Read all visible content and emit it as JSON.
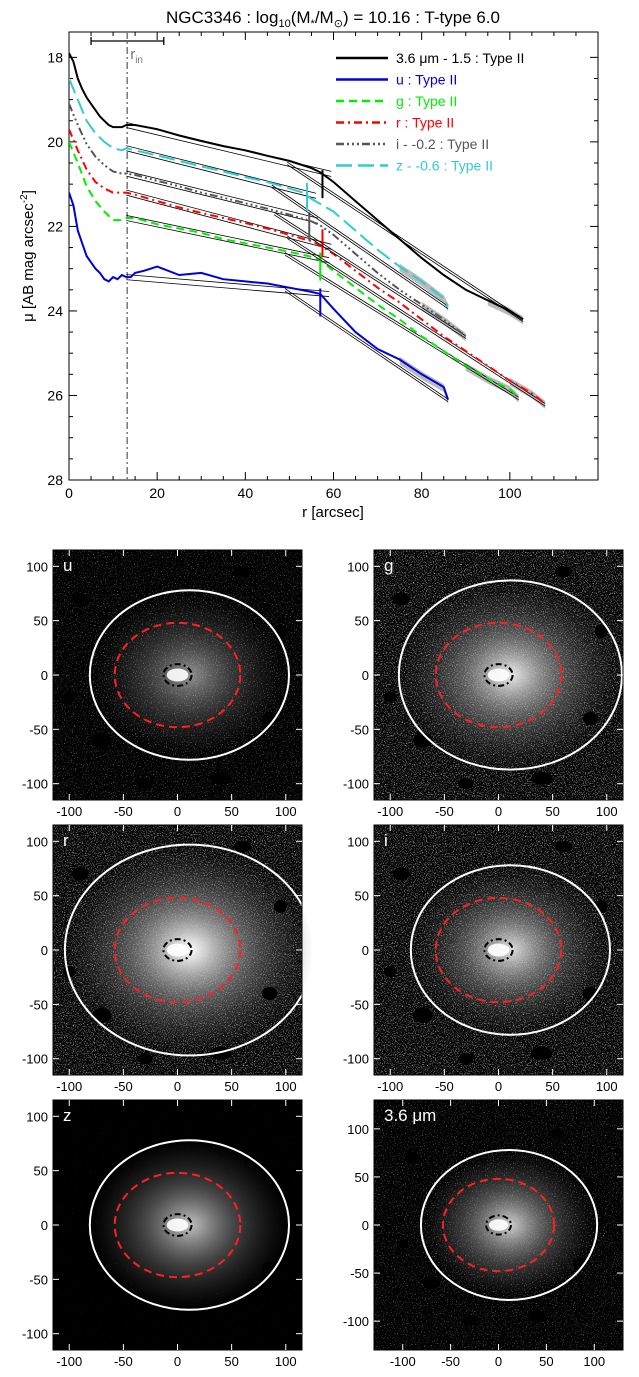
{
  "chart_data": [
    {
      "type": "line",
      "title_main": "NGC3346 : log",
      "title_sub": "10",
      "title_paren": "(M",
      "title_star": "*",
      "title_slash": "/M",
      "title_sun": "⊙",
      "title_rest": ") = 10.16 : T-type 6.0",
      "xlabel": "r [arcsec]",
      "ylabel": "μ [AB mag arcsec",
      "ylabel_sup": "-2",
      "ylabel_close": "]",
      "xlim": [
        0,
        120
      ],
      "ylim": [
        28,
        17.4
      ],
      "y_reversed": true,
      "xticks": [
        "0",
        "20",
        "40",
        "60",
        "80",
        "100"
      ],
      "yticks": [
        "18",
        "20",
        "22",
        "24",
        "26",
        "28"
      ],
      "r_in": 13.2,
      "r_in_label": "r",
      "r_in_sub": "in",
      "r_in_bar": [
        5,
        21.5
      ],
      "legend_position": "top-right",
      "series": [
        {
          "name": "3.6 μm - 1.5 : Type II",
          "color": "#000000",
          "dash": "",
          "x": [
            0,
            1,
            2,
            3,
            4,
            5,
            6,
            7,
            8,
            9,
            10,
            11,
            12,
            13,
            15,
            20,
            25,
            30,
            35,
            40,
            45,
            50,
            55,
            57,
            60,
            65,
            70,
            75,
            80,
            85,
            90,
            95,
            100,
            103
          ],
          "y": [
            17.9,
            18.1,
            18.5,
            18.75,
            18.95,
            19.1,
            19.25,
            19.4,
            19.5,
            19.6,
            19.65,
            19.65,
            19.65,
            19.6,
            19.6,
            19.7,
            19.85,
            19.98,
            20.1,
            20.2,
            20.33,
            20.45,
            20.62,
            20.72,
            20.95,
            21.4,
            21.85,
            22.3,
            22.75,
            23.15,
            23.5,
            23.75,
            24.0,
            24.2
          ],
          "break": 57.5,
          "break_y": 21.0
        },
        {
          "name": "u : Type II",
          "color": "#0000dd",
          "dash": "",
          "x": [
            0,
            1,
            2,
            3,
            4,
            5,
            6,
            7,
            8,
            9,
            10,
            11,
            12,
            13,
            14,
            15,
            17,
            20,
            25,
            30,
            35,
            40,
            45,
            50,
            55,
            57,
            60,
            65,
            70,
            75,
            80,
            85,
            86
          ],
          "y": [
            21.2,
            21.5,
            22.1,
            22.4,
            22.7,
            22.85,
            23.0,
            23.1,
            23.25,
            23.3,
            23.2,
            23.25,
            23.15,
            23.2,
            23.2,
            23.1,
            23.05,
            22.95,
            23.15,
            23.1,
            23.25,
            23.3,
            23.35,
            23.45,
            23.55,
            23.6,
            23.95,
            24.5,
            24.9,
            25.15,
            25.5,
            25.8,
            26.1
          ],
          "break": 57.0,
          "break_y": 23.8
        },
        {
          "name": "g : Type II",
          "color": "#00ee00",
          "dash": "8,5",
          "x": [
            0,
            2,
            4,
            6,
            8,
            10,
            12,
            13,
            15,
            20,
            25,
            30,
            35,
            40,
            45,
            50,
            55,
            57,
            60,
            65,
            70,
            75,
            80,
            85,
            90,
            95,
            100,
            102
          ],
          "y": [
            20.0,
            20.5,
            21.05,
            21.4,
            21.65,
            21.85,
            21.85,
            21.8,
            21.8,
            21.95,
            22.05,
            22.15,
            22.3,
            22.4,
            22.5,
            22.6,
            22.72,
            22.8,
            23.05,
            23.45,
            23.85,
            24.2,
            24.6,
            24.95,
            25.3,
            25.6,
            25.85,
            26.05
          ],
          "break": 57.0,
          "break_y": 22.95
        },
        {
          "name": "r : Type II",
          "color": "#ff0000",
          "dash": "8,4,2,4",
          "x": [
            0,
            2,
            4,
            6,
            8,
            10,
            12,
            13,
            15,
            20,
            25,
            30,
            35,
            40,
            45,
            50,
            55,
            57,
            60,
            65,
            70,
            75,
            80,
            85,
            90,
            95,
            100,
            105,
            108
          ],
          "y": [
            19.7,
            20.2,
            20.65,
            20.95,
            21.1,
            21.2,
            21.2,
            21.2,
            21.25,
            21.4,
            21.55,
            21.68,
            21.8,
            21.92,
            22.05,
            22.2,
            22.35,
            22.45,
            22.65,
            23.05,
            23.45,
            23.8,
            24.2,
            24.6,
            24.95,
            25.3,
            25.65,
            25.95,
            26.2
          ],
          "break": 57.5,
          "break_y": 22.4
        },
        {
          "name": "i - -0.2 : Type II",
          "color": "#555555",
          "dash": "8,3,2,3,2,3,2,3",
          "x": [
            0,
            2,
            4,
            6,
            8,
            10,
            12,
            13,
            15,
            20,
            25,
            30,
            35,
            40,
            45,
            50,
            55,
            57,
            60,
            65,
            70,
            75,
            80,
            85,
            90
          ],
          "y": [
            19.1,
            19.6,
            20.05,
            20.35,
            20.55,
            20.7,
            20.75,
            20.75,
            20.78,
            20.92,
            21.05,
            21.2,
            21.32,
            21.45,
            21.58,
            21.72,
            21.88,
            21.98,
            22.2,
            22.65,
            23.1,
            23.5,
            23.85,
            24.2,
            24.6
          ],
          "break": 54.5,
          "break_y": 22.0
        },
        {
          "name": "z - -0.6 : Type II",
          "color": "#33cccc",
          "dash": "16,6",
          "x": [
            0,
            2,
            4,
            6,
            8,
            10,
            12,
            13,
            15,
            20,
            25,
            30,
            35,
            40,
            45,
            50,
            53,
            55,
            60,
            65,
            70,
            75,
            80,
            85,
            86
          ],
          "y": [
            18.5,
            19.0,
            19.5,
            19.8,
            20.0,
            20.15,
            20.2,
            20.15,
            20.2,
            20.32,
            20.45,
            20.58,
            20.7,
            20.83,
            20.95,
            21.1,
            21.2,
            21.35,
            21.65,
            22.1,
            22.55,
            22.95,
            23.3,
            23.7,
            23.9
          ],
          "break": 54.0,
          "break_y": 21.3
        }
      ]
    },
    {
      "type": "panels",
      "panels": [
        {
          "label": "u",
          "xlim": [
            -115,
            115
          ],
          "ylim": [
            -115,
            115
          ],
          "xticks": [
            "-100",
            "-50",
            "0",
            "50",
            "100"
          ],
          "yticks": [
            "100",
            "50",
            "0",
            "-50",
            "-100"
          ],
          "outer_ellipse": [
            11,
            0,
            92,
            78
          ],
          "inner_ellipse": [
            0,
            0,
            58,
            48
          ],
          "core_ellipse": [
            0,
            0,
            13,
            10
          ]
        },
        {
          "label": "g",
          "xlim": [
            -115,
            115
          ],
          "ylim": [
            -115,
            115
          ],
          "xticks": [
            "-100",
            "-50",
            "0",
            "50",
            "100"
          ],
          "yticks": [
            "100",
            "50",
            "0",
            "-50",
            "-100"
          ],
          "outer_ellipse": [
            11,
            0,
            103,
            87
          ],
          "inner_ellipse": [
            0,
            0,
            58,
            48
          ],
          "core_ellipse": [
            0,
            0,
            13,
            10
          ]
        },
        {
          "label": "r",
          "xlim": [
            -115,
            115
          ],
          "ylim": [
            -115,
            115
          ],
          "xticks": [
            "-100",
            "-50",
            "0",
            "50",
            "100"
          ],
          "yticks": [
            "100",
            "50",
            "0",
            "-50",
            "-100"
          ],
          "outer_ellipse": [
            11,
            0,
            115,
            97
          ],
          "inner_ellipse": [
            0,
            0,
            58,
            48
          ],
          "core_ellipse": [
            0,
            0,
            13,
            10
          ]
        },
        {
          "label": "i",
          "xlim": [
            -115,
            115
          ],
          "ylim": [
            -115,
            115
          ],
          "xticks": [
            "-100",
            "-50",
            "0",
            "50",
            "100"
          ],
          "yticks": [
            "100",
            "50",
            "0",
            "-50",
            "-100"
          ],
          "outer_ellipse": [
            11,
            0,
            92,
            78
          ],
          "inner_ellipse": [
            0,
            0,
            58,
            48
          ],
          "core_ellipse": [
            0,
            0,
            13,
            10
          ]
        },
        {
          "label": "z",
          "xlim": [
            -115,
            115
          ],
          "ylim": [
            -115,
            115
          ],
          "xticks": [
            "-100",
            "-50",
            "0",
            "50",
            "100"
          ],
          "yticks": [
            "100",
            "50",
            "0",
            "-50",
            "-100"
          ],
          "outer_ellipse": [
            11,
            0,
            92,
            78
          ],
          "inner_ellipse": [
            0,
            0,
            58,
            48
          ],
          "core_ellipse": [
            0,
            0,
            13,
            10
          ]
        },
        {
          "label": "3.6 μm",
          "xlim": [
            -130,
            130
          ],
          "ylim": [
            -130,
            130
          ],
          "xticks": [
            "-100",
            "-50",
            "0",
            "50",
            "100"
          ],
          "yticks": [
            "100",
            "50",
            "0",
            "-50",
            "-100"
          ],
          "outer_ellipse": [
            11,
            0,
            92,
            78
          ],
          "inner_ellipse": [
            0,
            0,
            58,
            48
          ],
          "core_ellipse": [
            0,
            0,
            13,
            10
          ]
        }
      ],
      "colors": {
        "outer": "#ffffff",
        "inner": "#ff2020",
        "core": "#000000"
      }
    }
  ]
}
